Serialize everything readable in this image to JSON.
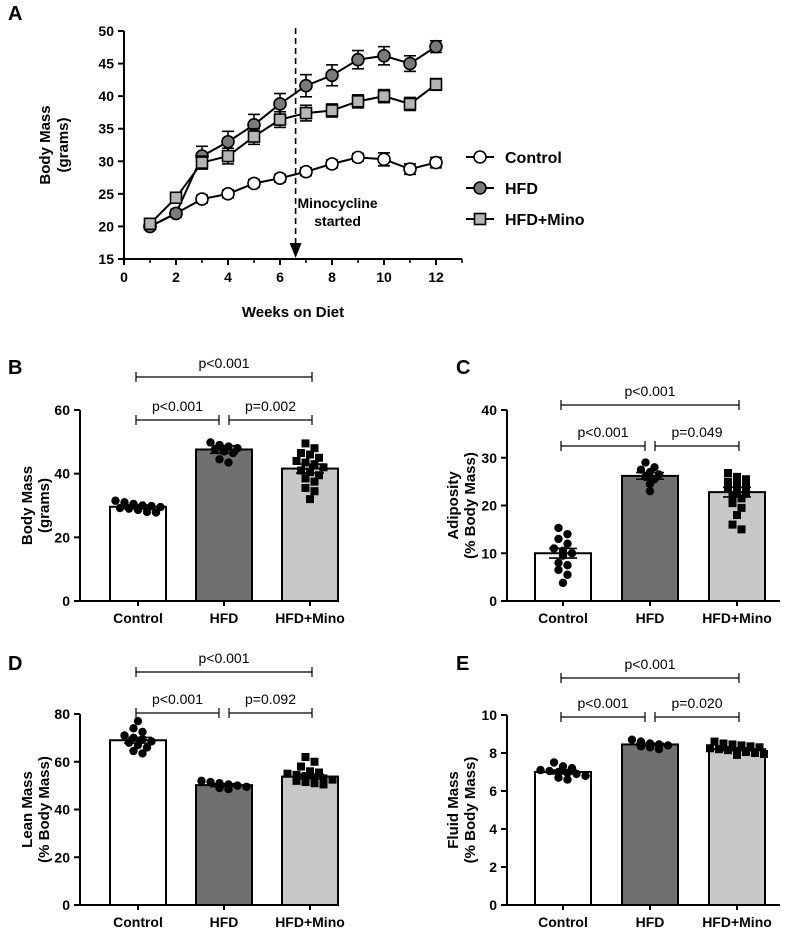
{
  "chart_data": [
    {
      "panel": "A",
      "type": "line",
      "xlabel": "Weeks on Diet",
      "ylabel_line1": "Body Mass",
      "ylabel_line2": "(grams)",
      "xlim": [
        0,
        13
      ],
      "ylim": [
        15,
        50
      ],
      "xticks": [
        0,
        2,
        4,
        6,
        8,
        10,
        12
      ],
      "yticks": [
        15,
        20,
        25,
        30,
        35,
        40,
        45,
        50
      ],
      "annotation_line1": "Minocycline",
      "annotation_line2": "started",
      "annotation_x": 6.6,
      "x": [
        1,
        2,
        3,
        4,
        5,
        6,
        7,
        8,
        9,
        10,
        11,
        12
      ],
      "series": [
        {
          "name": "Control",
          "marker": "circle",
          "fill": "#ffffff",
          "values": [
            20.0,
            22.0,
            24.2,
            25.0,
            26.6,
            27.4,
            28.4,
            29.6,
            30.6,
            30.3,
            28.8,
            29.8
          ],
          "errors": [
            0.5,
            0.5,
            0.6,
            0.6,
            0.6,
            0.6,
            0.6,
            0.6,
            0.6,
            1.0,
            0.8,
            0.8
          ]
        },
        {
          "name": "HFD",
          "marker": "circle",
          "fill": "#7a7a7a",
          "values": [
            20.0,
            22.0,
            30.8,
            33.0,
            35.6,
            38.8,
            41.6,
            43.2,
            45.6,
            46.2,
            45.0,
            47.6
          ],
          "errors": [
            0.5,
            0.6,
            1.5,
            1.6,
            1.6,
            1.6,
            1.7,
            1.6,
            1.4,
            1.4,
            1.2,
            0.9
          ]
        },
        {
          "name": "HFD+Mino",
          "marker": "square",
          "fill": "#b5b5b5",
          "values": [
            20.4,
            24.4,
            29.8,
            30.8,
            33.8,
            36.4,
            37.4,
            37.8,
            39.2,
            40.0,
            38.8,
            41.8
          ],
          "errors": [
            0.5,
            0.6,
            1.0,
            1.2,
            1.2,
            1.2,
            1.2,
            1.0,
            1.0,
            1.0,
            1.0,
            0.9
          ]
        }
      ]
    },
    {
      "panel": "B",
      "type": "bar",
      "ylabel_line1": "Body Mass",
      "ylabel_line2": "(grams)",
      "categories": [
        "Control",
        "HFD",
        "HFD+Mino"
      ],
      "values": [
        29.6,
        47.6,
        41.6
      ],
      "sem": [
        0.6,
        1.2,
        1.4
      ],
      "ylim": [
        0,
        60
      ],
      "yticks": [
        0,
        20,
        40,
        60
      ],
      "bar_colors": [
        "#ffffff",
        "#707070",
        "#c8c8c8"
      ],
      "point_markers": [
        "circle",
        "circle",
        "square"
      ],
      "points": [
        [
          31.5,
          31.0,
          30.5,
          30.0,
          29.8,
          29.5,
          29.2,
          29.0,
          28.6,
          28.0,
          27.8
        ],
        [
          49.8,
          49.0,
          48.5,
          48.0,
          47.6,
          47.0,
          46.5,
          44.5,
          43.5
        ],
        [
          49.5,
          48.0,
          46.5,
          46.0,
          45.0,
          44.0,
          43.5,
          43.0,
          42.0,
          41.0,
          40.5,
          39.5,
          38.5,
          37.5,
          35.5,
          34.5,
          32.0
        ]
      ],
      "comparisons": [
        {
          "from": 0,
          "to": 1,
          "label": "p<0.001"
        },
        {
          "from": 1,
          "to": 2,
          "label": "p=0.002"
        },
        {
          "from": 0,
          "to": 2,
          "label": "p<0.001"
        }
      ]
    },
    {
      "panel": "C",
      "type": "bar",
      "ylabel_line1": "Adiposity",
      "ylabel_line2": "(% Body Mass)",
      "categories": [
        "Control",
        "HFD",
        "HFD+Mino"
      ],
      "values": [
        10.0,
        26.2,
        22.8
      ],
      "sem": [
        1.0,
        0.7,
        1.0
      ],
      "ylim": [
        0,
        40
      ],
      "yticks": [
        0,
        10,
        20,
        30,
        40
      ],
      "bar_colors": [
        "#ffffff",
        "#707070",
        "#c8c8c8"
      ],
      "point_markers": [
        "circle",
        "circle",
        "square"
      ],
      "points": [
        [
          15.3,
          14.0,
          13.0,
          12.0,
          11.0,
          10.5,
          10.0,
          9.5,
          8.0,
          7.5,
          6.5,
          5.5,
          3.8
        ],
        [
          29.0,
          28.0,
          27.5,
          27.0,
          26.5,
          26.0,
          25.5,
          24.5,
          23.0
        ],
        [
          26.8,
          26.0,
          25.5,
          25.0,
          24.5,
          24.0,
          23.5,
          23.0,
          22.5,
          22.0,
          21.5,
          20.5,
          19.5,
          18.0,
          16.0,
          15.0
        ]
      ],
      "comparisons": [
        {
          "from": 0,
          "to": 1,
          "label": "p<0.001"
        },
        {
          "from": 1,
          "to": 2,
          "label": "p=0.049"
        },
        {
          "from": 0,
          "to": 2,
          "label": "p<0.001"
        }
      ]
    },
    {
      "panel": "D",
      "type": "bar",
      "ylabel_line1": "Lean Mass",
      "ylabel_line2": "(% Body Mass)",
      "categories": [
        "Control",
        "HFD",
        "HFD+Mino"
      ],
      "values": [
        69.0,
        50.2,
        53.8
      ],
      "sem": [
        1.2,
        0.6,
        0.9
      ],
      "ylim": [
        0,
        80
      ],
      "yticks": [
        0,
        20,
        40,
        60,
        80
      ],
      "bar_colors": [
        "#ffffff",
        "#707070",
        "#c8c8c8"
      ],
      "point_markers": [
        "circle",
        "circle",
        "square"
      ],
      "points": [
        [
          77.0,
          74.0,
          72.5,
          71.0,
          70.0,
          69.5,
          68.5,
          68.0,
          67.0,
          66.0,
          64.5,
          63.5
        ],
        [
          52.0,
          51.5,
          51.0,
          50.5,
          50.0,
          49.5,
          49.0,
          48.5
        ],
        [
          62.0,
          60.0,
          58.0,
          56.0,
          55.5,
          55.0,
          54.5,
          54.0,
          53.5,
          53.0,
          52.5,
          52.0,
          51.5,
          51.0,
          50.5
        ]
      ],
      "comparisons": [
        {
          "from": 0,
          "to": 1,
          "label": "p<0.001"
        },
        {
          "from": 1,
          "to": 2,
          "label": "p=0.092"
        },
        {
          "from": 0,
          "to": 2,
          "label": "p<0.001"
        }
      ]
    },
    {
      "panel": "E",
      "type": "bar",
      "ylabel_line1": "Fluid Mass",
      "ylabel_line2": "(% Body Mass)",
      "categories": [
        "Control",
        "HFD",
        "HFD+Mino"
      ],
      "values": [
        7.0,
        8.45,
        8.2
      ],
      "sem": [
        0.1,
        0.06,
        0.07
      ],
      "ylim": [
        0,
        10
      ],
      "yticks": [
        0,
        2,
        4,
        6,
        8,
        10
      ],
      "bar_colors": [
        "#ffffff",
        "#707070",
        "#c8c8c8"
      ],
      "point_markers": [
        "circle",
        "circle",
        "square"
      ],
      "points": [
        [
          7.5,
          7.3,
          7.2,
          7.1,
          7.05,
          7.0,
          6.95,
          6.9,
          6.8,
          6.7,
          6.6
        ],
        [
          8.7,
          8.6,
          8.5,
          8.45,
          8.4,
          8.35,
          8.3,
          8.2
        ],
        [
          8.6,
          8.5,
          8.45,
          8.4,
          8.35,
          8.3,
          8.25,
          8.2,
          8.15,
          8.1,
          8.05,
          8.0,
          7.95,
          7.9
        ]
      ],
      "comparisons": [
        {
          "from": 0,
          "to": 1,
          "label": "p<0.001"
        },
        {
          "from": 1,
          "to": 2,
          "label": "p=0.020"
        },
        {
          "from": 0,
          "to": 2,
          "label": "p<0.001"
        }
      ]
    }
  ]
}
